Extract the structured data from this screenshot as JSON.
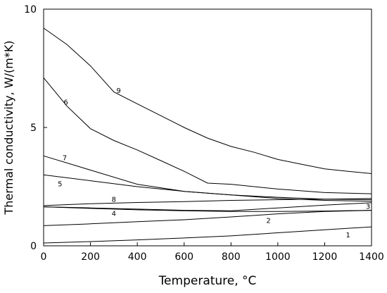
{
  "chart_data": {
    "type": "line",
    "xlabel": "Temperature, °C",
    "ylabel": "Thermal conductivity, W/(m*K)",
    "xlim": [
      0,
      1400
    ],
    "ylim": [
      0,
      10
    ],
    "xticks": [
      0,
      200,
      400,
      600,
      800,
      1000,
      1200,
      1400
    ],
    "yticks": [
      0,
      5,
      10
    ],
    "grid": false,
    "line_color": "#000000",
    "series": [
      {
        "name": "1",
        "points": [
          [
            0,
            0.12
          ],
          [
            200,
            0.18
          ],
          [
            400,
            0.25
          ],
          [
            600,
            0.33
          ],
          [
            800,
            0.42
          ],
          [
            1000,
            0.55
          ],
          [
            1200,
            0.68
          ],
          [
            1400,
            0.8
          ]
        ]
      },
      {
        "name": "2",
        "points": [
          [
            0,
            0.85
          ],
          [
            200,
            0.93
          ],
          [
            400,
            1.02
          ],
          [
            600,
            1.1
          ],
          [
            800,
            1.22
          ],
          [
            1000,
            1.35
          ],
          [
            1200,
            1.45
          ],
          [
            1400,
            1.5
          ]
        ]
      },
      {
        "name": "3",
        "points": [
          [
            0,
            1.65
          ],
          [
            200,
            1.6
          ],
          [
            400,
            1.55
          ],
          [
            600,
            1.5
          ],
          [
            800,
            1.48
          ],
          [
            1000,
            1.6
          ],
          [
            1200,
            1.72
          ],
          [
            1400,
            1.82
          ]
        ]
      },
      {
        "name": "4",
        "points": [
          [
            0,
            1.65
          ],
          [
            200,
            1.58
          ],
          [
            400,
            1.52
          ],
          [
            600,
            1.48
          ],
          [
            800,
            1.45
          ],
          [
            1000,
            1.45
          ],
          [
            1200,
            1.47
          ],
          [
            1400,
            1.5
          ]
        ]
      },
      {
        "name": "5",
        "points": [
          [
            0,
            3.0
          ],
          [
            200,
            2.75
          ],
          [
            400,
            2.5
          ],
          [
            600,
            2.3
          ],
          [
            800,
            2.15
          ],
          [
            1000,
            2.0
          ],
          [
            1200,
            1.92
          ],
          [
            1400,
            1.88
          ]
        ]
      },
      {
        "name": "6",
        "points": [
          [
            0,
            7.1
          ],
          [
            100,
            5.9
          ],
          [
            200,
            4.95
          ],
          [
            300,
            4.45
          ],
          [
            400,
            4.05
          ],
          [
            500,
            3.6
          ],
          [
            600,
            3.15
          ],
          [
            700,
            2.65
          ],
          [
            800,
            2.6
          ],
          [
            1000,
            2.4
          ],
          [
            1200,
            2.25
          ],
          [
            1400,
            2.2
          ]
        ]
      },
      {
        "name": "7",
        "points": [
          [
            0,
            3.8
          ],
          [
            200,
            3.2
          ],
          [
            400,
            2.6
          ],
          [
            600,
            2.3
          ],
          [
            800,
            2.15
          ],
          [
            1000,
            2.05
          ],
          [
            1200,
            1.97
          ],
          [
            1400,
            1.95
          ]
        ]
      },
      {
        "name": "8",
        "points": [
          [
            0,
            1.7
          ],
          [
            200,
            1.78
          ],
          [
            400,
            1.83
          ],
          [
            600,
            1.87
          ],
          [
            800,
            1.92
          ],
          [
            1000,
            1.95
          ],
          [
            1200,
            1.97
          ],
          [
            1400,
            2.0
          ]
        ]
      },
      {
        "name": "9",
        "points": [
          [
            0,
            9.2
          ],
          [
            100,
            8.5
          ],
          [
            200,
            7.6
          ],
          [
            300,
            6.5
          ],
          [
            400,
            6.0
          ],
          [
            500,
            5.5
          ],
          [
            600,
            5.0
          ],
          [
            700,
            4.55
          ],
          [
            800,
            4.2
          ],
          [
            900,
            3.95
          ],
          [
            1000,
            3.65
          ],
          [
            1100,
            3.45
          ],
          [
            1200,
            3.25
          ],
          [
            1300,
            3.15
          ],
          [
            1400,
            3.05
          ]
        ]
      }
    ],
    "curve_labels": [
      {
        "text": "1",
        "x": 1300,
        "y": 0.45
      },
      {
        "text": "2",
        "x": 960,
        "y": 1.05
      },
      {
        "text": "3",
        "x": 1385,
        "y": 1.65
      },
      {
        "text": "4",
        "x": 300,
        "y": 1.35
      },
      {
        "text": "5",
        "x": 70,
        "y": 2.6
      },
      {
        "text": "6",
        "x": 95,
        "y": 6.05
      },
      {
        "text": "7",
        "x": 90,
        "y": 3.7
      },
      {
        "text": "8",
        "x": 300,
        "y": 1.95
      },
      {
        "text": "9",
        "x": 320,
        "y": 6.55
      }
    ]
  }
}
